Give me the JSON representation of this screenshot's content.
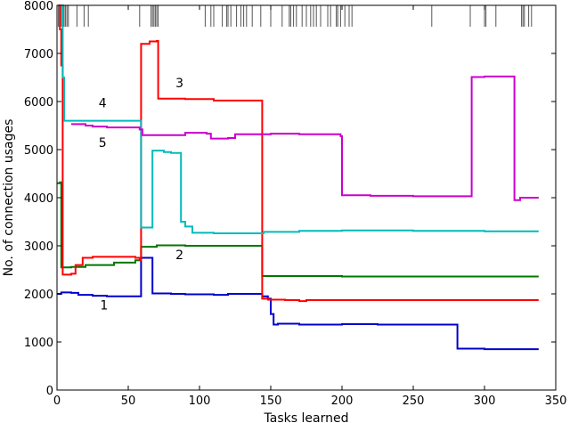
{
  "chart_data": {
    "type": "line",
    "title": "",
    "xlabel": "Tasks learned",
    "ylabel": "No. of connection usages",
    "xlim": [
      0,
      350
    ],
    "ylim": [
      0,
      8000
    ],
    "xticks": [
      0,
      50,
      100,
      150,
      200,
      250,
      300,
      350
    ],
    "yticks": [
      0,
      1000,
      2000,
      3000,
      4000,
      5000,
      6000,
      7000,
      8000
    ],
    "grid": false,
    "legend": "none",
    "series": [
      {
        "label": "1",
        "color": "#0000cc",
        "points": [
          [
            0,
            2000
          ],
          [
            3,
            2030
          ],
          [
            10,
            2020
          ],
          [
            15,
            1980
          ],
          [
            25,
            1960
          ],
          [
            35,
            1950
          ],
          [
            58,
            1950
          ],
          [
            59,
            2750
          ],
          [
            66,
            2750
          ],
          [
            67,
            2010
          ],
          [
            80,
            2000
          ],
          [
            90,
            1990
          ],
          [
            110,
            1980
          ],
          [
            120,
            2000
          ],
          [
            143,
            2000
          ],
          [
            144,
            1950
          ],
          [
            148,
            1900
          ],
          [
            150,
            1580
          ],
          [
            152,
            1360
          ],
          [
            155,
            1380
          ],
          [
            170,
            1360
          ],
          [
            200,
            1370
          ],
          [
            225,
            1360
          ],
          [
            270,
            1360
          ],
          [
            280,
            1360
          ],
          [
            281,
            860
          ],
          [
            300,
            850
          ],
          [
            338,
            850
          ]
        ]
      },
      {
        "label": "2",
        "color": "#007700",
        "points": [
          [
            0,
            4300
          ],
          [
            2,
            4320
          ],
          [
            3,
            2550
          ],
          [
            5,
            2550
          ],
          [
            10,
            2560
          ],
          [
            20,
            2600
          ],
          [
            40,
            2650
          ],
          [
            55,
            2700
          ],
          [
            58,
            2700
          ],
          [
            59,
            2980
          ],
          [
            70,
            3010
          ],
          [
            80,
            3010
          ],
          [
            90,
            3000
          ],
          [
            100,
            3000
          ],
          [
            143,
            3000
          ],
          [
            144,
            2370
          ],
          [
            170,
            2370
          ],
          [
            200,
            2360
          ],
          [
            250,
            2360
          ],
          [
            300,
            2360
          ],
          [
            338,
            2360
          ]
        ]
      },
      {
        "label": "3",
        "color": "#ff0000",
        "points": [
          [
            1,
            8000
          ],
          [
            2,
            7500
          ],
          [
            3,
            6750
          ],
          [
            4,
            2400
          ],
          [
            10,
            2420
          ],
          [
            13,
            2600
          ],
          [
            18,
            2750
          ],
          [
            25,
            2770
          ],
          [
            40,
            2770
          ],
          [
            55,
            2750
          ],
          [
            58,
            2700
          ],
          [
            59,
            7200
          ],
          [
            65,
            7250
          ],
          [
            70,
            7260
          ],
          [
            71,
            6060
          ],
          [
            90,
            6050
          ],
          [
            110,
            6020
          ],
          [
            143,
            6020
          ],
          [
            144,
            1900
          ],
          [
            148,
            1880
          ],
          [
            160,
            1870
          ],
          [
            170,
            1850
          ],
          [
            175,
            1870
          ],
          [
            200,
            1870
          ],
          [
            250,
            1870
          ],
          [
            300,
            1870
          ],
          [
            338,
            1870
          ]
        ]
      },
      {
        "label": "4",
        "color": "#00bbbb",
        "points": [
          [
            3,
            8000
          ],
          [
            4,
            6500
          ],
          [
            5,
            5600
          ],
          [
            20,
            5600
          ],
          [
            40,
            5600
          ],
          [
            58,
            5600
          ],
          [
            59,
            3380
          ],
          [
            66,
            3380
          ],
          [
            67,
            4980
          ],
          [
            75,
            4950
          ],
          [
            80,
            4930
          ],
          [
            86,
            4930
          ],
          [
            87,
            3500
          ],
          [
            90,
            3400
          ],
          [
            95,
            3270
          ],
          [
            110,
            3260
          ],
          [
            130,
            3260
          ],
          [
            145,
            3290
          ],
          [
            170,
            3310
          ],
          [
            200,
            3320
          ],
          [
            250,
            3310
          ],
          [
            280,
            3310
          ],
          [
            300,
            3300
          ],
          [
            338,
            3300
          ]
        ]
      },
      {
        "label": "5",
        "color": "#cc00cc",
        "points": [
          [
            10,
            5530
          ],
          [
            20,
            5500
          ],
          [
            25,
            5480
          ],
          [
            35,
            5460
          ],
          [
            58,
            5420
          ],
          [
            60,
            5300
          ],
          [
            70,
            5300
          ],
          [
            90,
            5350
          ],
          [
            105,
            5330
          ],
          [
            108,
            5230
          ],
          [
            120,
            5240
          ],
          [
            125,
            5320
          ],
          [
            150,
            5330
          ],
          [
            170,
            5320
          ],
          [
            199,
            5280
          ],
          [
            200,
            4050
          ],
          [
            220,
            4040
          ],
          [
            250,
            4030
          ],
          [
            290,
            4030
          ],
          [
            291,
            6510
          ],
          [
            300,
            6520
          ],
          [
            320,
            6520
          ],
          [
            321,
            3950
          ],
          [
            325,
            4000
          ],
          [
            338,
            4000
          ]
        ]
      }
    ],
    "annotations": [
      {
        "text": "1",
        "x": 33,
        "y": 1680
      },
      {
        "text": "2",
        "x": 86,
        "y": 2720
      },
      {
        "text": "3",
        "x": 86,
        "y": 6300
      },
      {
        "text": "4",
        "x": 32,
        "y": 5880
      },
      {
        "text": "5",
        "x": 32,
        "y": 5060
      }
    ],
    "event_marks": [
      1,
      2,
      3,
      4,
      5,
      6,
      7,
      8,
      14,
      19,
      22,
      58,
      66,
      67,
      68,
      69,
      70,
      71,
      104,
      108,
      110,
      116,
      119,
      120,
      122,
      126,
      129,
      131,
      133,
      137,
      143,
      150,
      158,
      163,
      164,
      166,
      168,
      172,
      175,
      178,
      180,
      182,
      185,
      190,
      192,
      196,
      197,
      199,
      202,
      205,
      207,
      263,
      290,
      300,
      301,
      308,
      326,
      327,
      328,
      331,
      333
    ]
  }
}
